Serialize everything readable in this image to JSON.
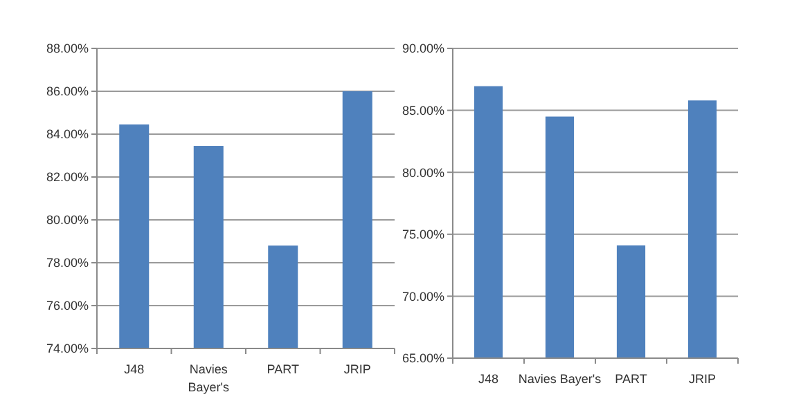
{
  "chart_data": [
    {
      "type": "bar",
      "categories": [
        "J48",
        "Navies Bayer's",
        "PART",
        "JRIP"
      ],
      "values": [
        84.45,
        83.45,
        78.8,
        86.0
      ],
      "color": "#4f81bd",
      "ylim": [
        74,
        88
      ],
      "yticks": [
        {
          "value": 74,
          "label": "74.00%"
        },
        {
          "value": 76,
          "label": "76.00%"
        },
        {
          "value": 78,
          "label": "78.00%"
        },
        {
          "value": 80,
          "label": "80.00%"
        },
        {
          "value": 82,
          "label": "82.00%"
        },
        {
          "value": 84,
          "label": "84.00%"
        },
        {
          "value": 86,
          "label": "86.00%"
        },
        {
          "value": 88,
          "label": "88.00%"
        }
      ],
      "grid": "y"
    },
    {
      "type": "bar",
      "categories": [
        "J48",
        "Navies Bayer's",
        "PART",
        "JRIP"
      ],
      "values": [
        86.95,
        84.5,
        74.1,
        85.8
      ],
      "color": "#4f81bd",
      "ylim": [
        65,
        90
      ],
      "yticks": [
        {
          "value": 65,
          "label": "65.00%"
        },
        {
          "value": 70,
          "label": "70.00%"
        },
        {
          "value": 75,
          "label": "75.00%"
        },
        {
          "value": 80,
          "label": "80.00%"
        },
        {
          "value": 85,
          "label": "85.00%"
        },
        {
          "value": 90,
          "label": "90.00%"
        }
      ],
      "grid": "y"
    }
  ]
}
